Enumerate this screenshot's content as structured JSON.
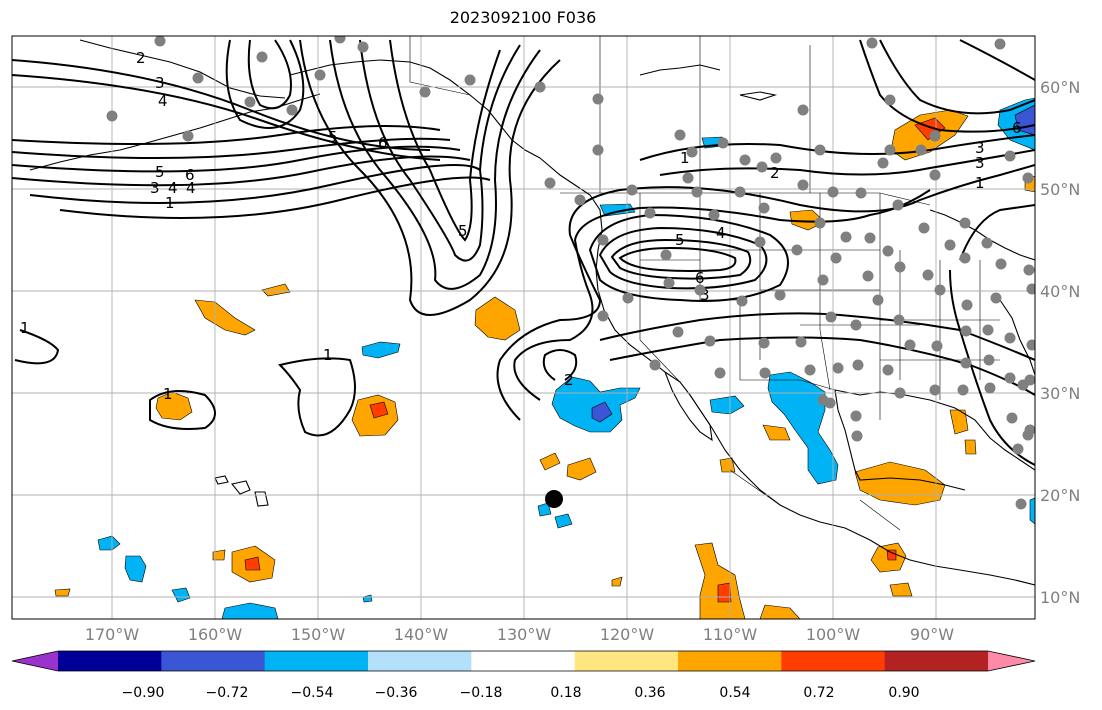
{
  "title": "2023092100 F036",
  "lon_labels": [
    "170°W",
    "160°W",
    "150°W",
    "140°W",
    "130°W",
    "120°W",
    "110°W",
    "100°W",
    "90°W"
  ],
  "lat_labels": [
    "60°N",
    "50°N",
    "40°N",
    "30°N",
    "20°N",
    "10°N"
  ],
  "colorbar": {
    "tick_labels": [
      "−0.90",
      "−0.72",
      "−0.54",
      "−0.36",
      "−0.18",
      "0.18",
      "0.36",
      "0.54",
      "0.72",
      "0.90"
    ],
    "colors": [
      "#9933cc",
      "#000099",
      "#3a56d4",
      "#00b3f5",
      "#b3e0fa",
      "#ffffff",
      "#ffe680",
      "#ffa500",
      "#ff3d00",
      "#b22222",
      "#ff8aa8"
    ]
  },
  "contour_labels": [
    "1",
    "2",
    "3",
    "4",
    "5",
    "6"
  ],
  "colors": {
    "land_outline": "#000000",
    "station": "#808080",
    "grid": "#b0b0b0",
    "contour": "#000000"
  }
}
